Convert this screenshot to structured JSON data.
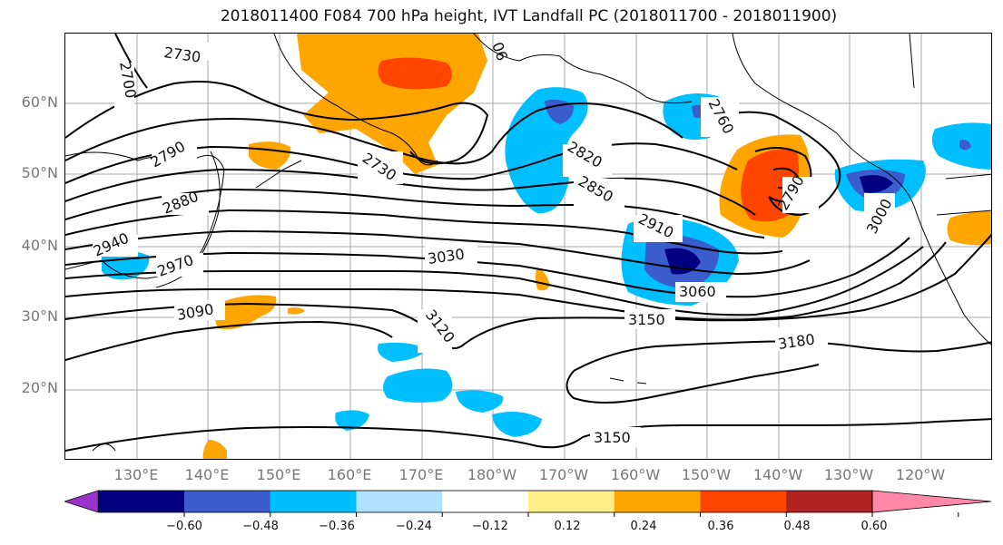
{
  "title": "2018011400 F084 700 hPa height, IVT Landfall PC (2018011700 - 2018011900)",
  "lat_labels": [
    "60°N",
    "50°N",
    "40°N",
    "30°N",
    "20°N"
  ],
  "lon_labels": [
    "130°E",
    "140°E",
    "150°E",
    "160°E",
    "170°E",
    "180°W",
    "170°W",
    "160°W",
    "150°W",
    "140°W",
    "130°W",
    "120°W"
  ],
  "contour_labels": [
    "2730",
    "2700",
    "2790",
    "2880",
    "2940",
    "2970",
    "3090",
    "2730",
    "2820",
    "2850",
    "2910",
    "3030",
    "3060",
    "3120",
    "3150",
    "3180",
    "3150",
    "2760",
    "2790",
    "3000",
    "06"
  ],
  "colorbar": {
    "ticks": [
      "−0.60",
      "−0.48",
      "−0.36",
      "−0.24",
      "−0.12",
      "0.12",
      "0.24",
      "0.36",
      "0.48",
      "0.60"
    ],
    "colors": [
      "#9933cc",
      "#000080",
      "#3a5ccc",
      "#00bfff",
      "#b0e0ff",
      "#ffffff",
      "#ffee88",
      "#ffa500",
      "#ff4500",
      "#b22222",
      "#ff88aa"
    ]
  }
}
